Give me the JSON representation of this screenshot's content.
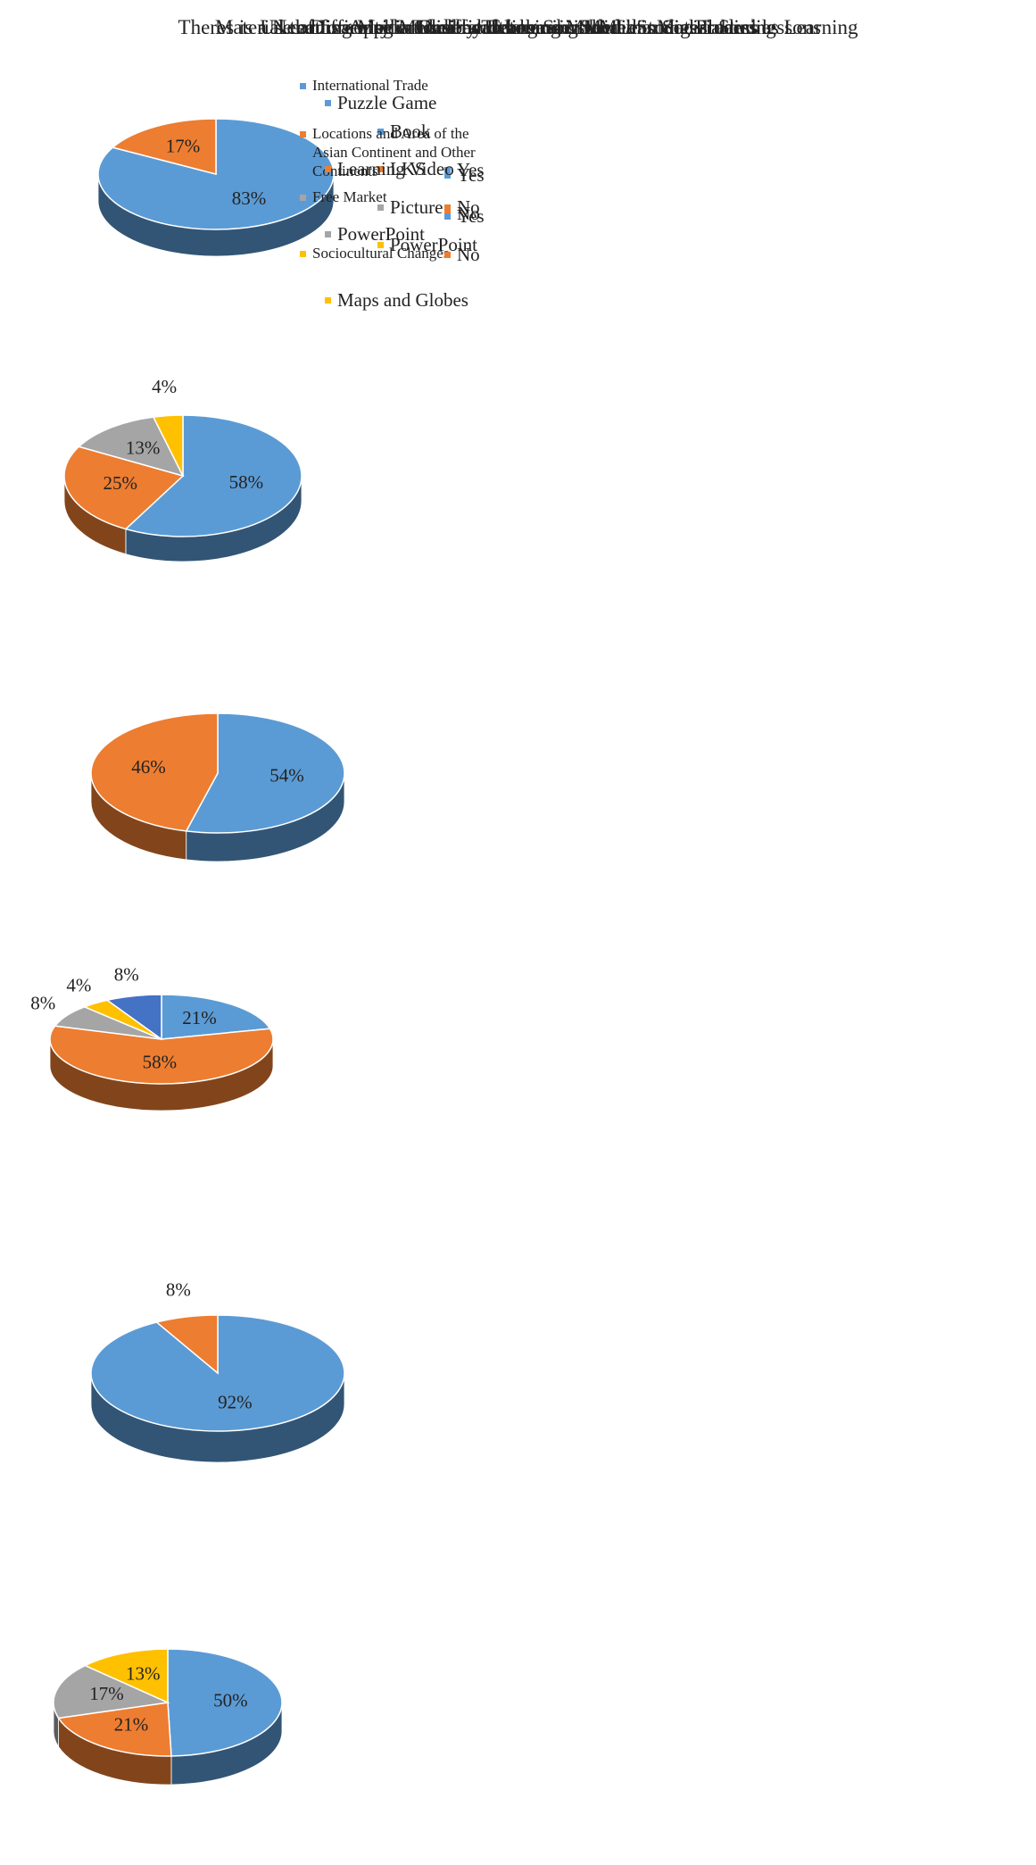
{
  "chart_data": [
    {
      "type": "pie",
      "title": "Use of Learning Media by Teachers in Social Studies Learning",
      "categories": [
        "Yes",
        "No"
      ],
      "values": [
        83,
        17
      ],
      "value_labels": [
        "83%",
        "17%"
      ],
      "colors": [
        "#5b9bd5",
        "#ed7d31"
      ],
      "legend": "right"
    },
    {
      "type": "pie",
      "title": "Learning Media Used by Teachers in the Learning  Process",
      "categories": [
        "Book",
        "LKS",
        "Picture",
        "PowerPoint"
      ],
      "values": [
        58,
        25,
        13,
        4
      ],
      "value_labels": [
        "58%",
        "25%",
        "13%",
        "4%"
      ],
      "colors": [
        "#5b9bd5",
        "#ed7d31",
        "#a5a5a5",
        "#ffc000"
      ],
      "legend": "right"
    },
    {
      "type": "pie",
      "title": "Difficulty in Understanding Social Media Material",
      "categories": [
        "Yes",
        "No"
      ],
      "values": [
        54,
        46
      ],
      "value_labels": [
        "54%",
        "46%"
      ],
      "colors": [
        "#5b9bd5",
        "#ed7d31"
      ],
      "legend": "right"
    },
    {
      "type": "pie",
      "title": "Material that is considered difficult to understand in social studies lessons",
      "categories": [
        "International Trade",
        "Locations and Area of the Asian Continent and Other Continents",
        "Free Market",
        "Sociocultural Changes",
        null
      ],
      "values": [
        21,
        58,
        8,
        4,
        8
      ],
      "value_labels": [
        "21%",
        "58%",
        "8%",
        "4%",
        "8%"
      ],
      "colors": [
        "#5b9bd5",
        "#ed7d31",
        "#a5a5a5",
        "#ffc000",
        "#4472c4"
      ],
      "legend": "right"
    },
    {
      "type": "pie",
      "title": "Theres is a Need for Application-based Learning Media in Social Studies Learning",
      "categories": [
        "Yes",
        "No"
      ],
      "values": [
        92,
        8
      ],
      "value_labels": [
        "92%",
        "8%"
      ],
      "colors": [
        "#5b9bd5",
        "#ed7d31"
      ],
      "legend": "right"
    },
    {
      "type": "pie",
      "title": "Desired Learning Media",
      "categories": [
        "Puzzle Game",
        "Learning Video",
        "PowerPoint",
        "Maps and Globes"
      ],
      "values": [
        50,
        21,
        17,
        13
      ],
      "value_labels": [
        "50%",
        "21%",
        "17%",
        "13%"
      ],
      "colors": [
        "#5b9bd5",
        "#ed7d31",
        "#a5a5a5",
        "#ffc000"
      ],
      "legend": "right"
    }
  ]
}
